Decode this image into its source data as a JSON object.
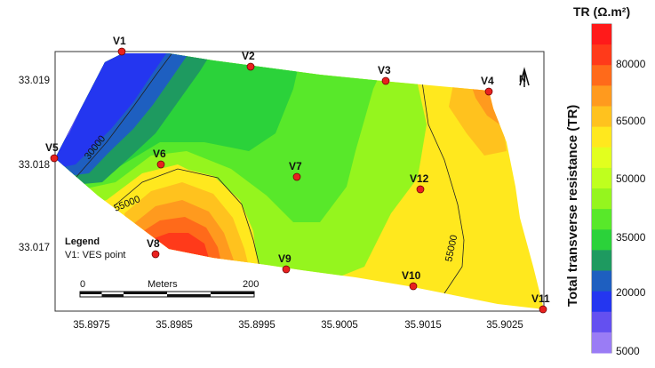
{
  "map": {
    "legend_title": "Legend",
    "legend_item": "V1: VES point",
    "scalebar": {
      "start": "0",
      "unit": "Meters",
      "end": "200"
    },
    "north_arrow": "N",
    "x_ticks": [
      "35.8975",
      "35.8985",
      "35.8995",
      "35.9005",
      "35.9015",
      "35.9025"
    ],
    "y_ticks": [
      "33.019",
      "33.018",
      "33.017"
    ],
    "contour_labels": [
      "30000",
      "55000",
      "55000"
    ],
    "ves_points": [
      "V1",
      "V2",
      "V3",
      "V4",
      "V5",
      "V6",
      "V7",
      "V8",
      "V9",
      "V10",
      "V11",
      "V12"
    ],
    "colors": {
      "point_fill": "#e8211f",
      "contour_line": "#222222"
    }
  },
  "colorbar": {
    "title": "TR (Ω.m²)",
    "axis_title": "Total transverse resistance (TR)",
    "ticks": [
      "80000",
      "65000",
      "50000",
      "35000",
      "20000",
      "5000"
    ],
    "classes": [
      "#ff1a1a",
      "#ff3a1a",
      "#ff6a1a",
      "#ff9a1e",
      "#ffc21e",
      "#ffe81e",
      "#e2ff1e",
      "#bfff1e",
      "#95f51e",
      "#58e82a",
      "#2bd23a",
      "#1e9a60",
      "#1e5fc0",
      "#2436f0",
      "#6450f0",
      "#9a7cf5"
    ]
  }
}
